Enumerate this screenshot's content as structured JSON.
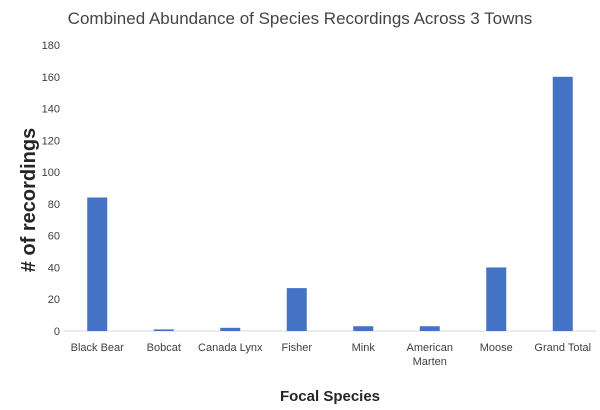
{
  "chart_data": {
    "type": "bar",
    "title": "Combined Abundance of Species Recordings Across 3 Towns",
    "xlabel": "Focal Species",
    "ylabel": "# of recordings",
    "categories": [
      "Black Bear",
      "Bobcat",
      "Canada Lynx",
      "Fisher",
      "Mink",
      "American Marten",
      "Moose",
      "Grand Total"
    ],
    "values": [
      84,
      1,
      2,
      27,
      3,
      3,
      40,
      160
    ],
    "ylim": [
      0,
      180
    ],
    "yticks": [
      "0",
      "20",
      "40",
      "60",
      "80",
      "100",
      "120",
      "140",
      "160",
      "180"
    ],
    "grid": false,
    "legend": "none",
    "bar_color": "#4472C4"
  }
}
